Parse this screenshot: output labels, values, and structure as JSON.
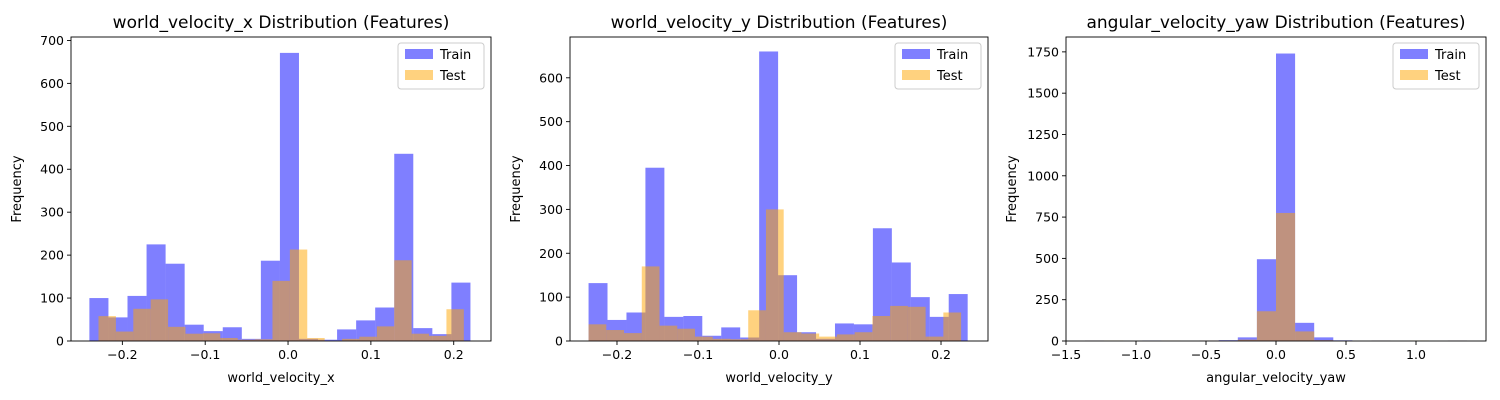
{
  "colors": {
    "train": "#0000ff",
    "test": "#ffa500",
    "train_alpha": 0.5,
    "test_alpha": 0.5
  },
  "chart_data": [
    {
      "type": "histogram",
      "title": "world_velocity_x Distribution (Features)",
      "xlabel": "world_velocity_x",
      "ylabel": "Frequency",
      "xlim": [
        -0.262,
        0.245
      ],
      "ylim": [
        0,
        708
      ],
      "xticks": [
        -0.2,
        -0.1,
        0.0,
        0.1,
        0.2
      ],
      "xtick_labels": [
        "−0.2",
        "−0.1",
        "0.0",
        "0.1",
        "0.2"
      ],
      "yticks": [
        0,
        100,
        200,
        300,
        400,
        500,
        600,
        700
      ],
      "ytick_labels": [
        "0",
        "100",
        "200",
        "300",
        "400",
        "500",
        "600",
        "700"
      ],
      "legend": {
        "placement": "top-right",
        "entries": [
          "Train",
          "Test"
        ]
      },
      "series": [
        {
          "name": "Train",
          "color": "#0000ff",
          "edges": [
            -0.2398,
            -0.2168,
            -0.1938,
            -0.1708,
            -0.1478,
            -0.1248,
            -0.1018,
            -0.0788,
            -0.0558,
            -0.0328,
            -0.0098,
            0.0132,
            0.0362,
            0.0592,
            0.0822,
            0.1052,
            0.1282,
            0.1512,
            0.1742,
            0.1972,
            0.2202
          ],
          "values": [
            100,
            55,
            105,
            225,
            180,
            38,
            23,
            32,
            5,
            187,
            671,
            5,
            3,
            27,
            48,
            78,
            436,
            30,
            16,
            136
          ]
        },
        {
          "name": "Test",
          "color": "#ffa500",
          "edges": [
            -0.2288,
            -0.2078,
            -0.1868,
            -0.1658,
            -0.1448,
            -0.1238,
            -0.1028,
            -0.0818,
            -0.0608,
            -0.0398,
            -0.0188,
            0.0022,
            0.0232,
            0.0442,
            0.0652,
            0.0862,
            0.1072,
            0.1282,
            0.1492,
            0.1702,
            0.1912,
            0.2122
          ],
          "values": [
            58,
            22,
            75,
            97,
            33,
            17,
            18,
            7,
            3,
            4,
            140,
            213,
            7,
            0,
            5,
            10,
            34,
            188,
            17,
            12,
            74
          ]
        }
      ]
    },
    {
      "type": "histogram",
      "title": "world_velocity_y Distribution (Features)",
      "xlabel": "world_velocity_y",
      "ylabel": "Frequency",
      "xlim": [
        -0.258,
        0.258
      ],
      "ylim": [
        0,
        693
      ],
      "xticks": [
        -0.2,
        -0.1,
        0.0,
        0.1,
        0.2
      ],
      "xtick_labels": [
        "−0.2",
        "−0.1",
        "0.0",
        "0.1",
        "0.2"
      ],
      "yticks": [
        0,
        100,
        200,
        300,
        400,
        500,
        600
      ],
      "ytick_labels": [
        "0",
        "100",
        "200",
        "300",
        "400",
        "500",
        "600"
      ],
      "legend": {
        "placement": "top-right",
        "entries": [
          "Train",
          "Test"
        ]
      },
      "series": [
        {
          "name": "Train",
          "color": "#0000ff",
          "edges": [
            -0.2351,
            -0.2117,
            -0.1883,
            -0.1649,
            -0.1415,
            -0.1181,
            -0.0947,
            -0.0713,
            -0.0479,
            -0.0245,
            -0.0011,
            0.0223,
            0.0457,
            0.0691,
            0.0925,
            0.1159,
            0.1393,
            0.1627,
            0.1861,
            0.2095,
            0.2329
          ],
          "values": [
            132,
            48,
            65,
            395,
            55,
            57,
            12,
            31,
            8,
            660,
            150,
            20,
            5,
            40,
            38,
            257,
            179,
            100,
            55,
            107
          ]
        },
        {
          "name": "Test",
          "color": "#ffa500",
          "edges": [
            -0.2351,
            -0.2132,
            -0.1913,
            -0.1694,
            -0.1475,
            -0.1256,
            -0.1037,
            -0.0818,
            -0.0599,
            -0.038,
            -0.0161,
            0.0058,
            0.0277,
            0.0496,
            0.0715,
            0.0934,
            0.1153,
            0.1372,
            0.1591,
            0.181,
            0.2029,
            0.2248
          ],
          "values": [
            38,
            25,
            18,
            170,
            35,
            28,
            10,
            5,
            4,
            70,
            300,
            20,
            17,
            10,
            15,
            20,
            57,
            80,
            78,
            10,
            65
          ]
        }
      ]
    },
    {
      "type": "histogram",
      "title": "angular_velocity_yaw Distribution (Features)",
      "xlabel": "angular_velocity_yaw",
      "ylabel": "Frequency",
      "xlim": [
        -1.5,
        1.5
      ],
      "ylim": [
        0,
        1840
      ],
      "xticks": [
        -1.5,
        -1.0,
        -0.5,
        0.0,
        0.5,
        1.0
      ],
      "xtick_labels": [
        "−1.5",
        "−1.0",
        "−0.5",
        "0.0",
        "0.5",
        "1.0"
      ],
      "yticks": [
        0,
        250,
        500,
        750,
        1000,
        1250,
        1500,
        1750
      ],
      "ytick_labels": [
        "0",
        "250",
        "500",
        "750",
        "1000",
        "1250",
        "1500",
        "1750"
      ],
      "legend": {
        "placement": "top-right",
        "entries": [
          "Train",
          "Test"
        ]
      },
      "series": [
        {
          "name": "Train",
          "color": "#0000ff",
          "edges": [
            -1.364,
            -1.2276,
            -1.0912,
            -0.9548,
            -0.8184,
            -0.682,
            -0.5456,
            -0.4092,
            -0.2728,
            -0.1364,
            0.0,
            0.1364,
            0.2728,
            0.4092,
            0.5456,
            0.682,
            0.8184,
            0.9548,
            1.0912,
            1.2276,
            1.364
          ],
          "values": [
            3,
            0,
            0,
            3,
            0,
            0,
            3,
            5,
            22,
            495,
            1740,
            110,
            22,
            4,
            0,
            3,
            0,
            0,
            0,
            3
          ]
        },
        {
          "name": "Test",
          "color": "#ffa500",
          "edges": [
            -1.364,
            -1.2276,
            -1.0912,
            -0.9548,
            -0.8184,
            -0.682,
            -0.5456,
            -0.4092,
            -0.2728,
            -0.1364,
            0.0,
            0.1364,
            0.2728,
            0.4092,
            0.5456,
            0.682,
            0.8184,
            0.9548,
            1.0912,
            1.2276,
            1.364
          ],
          "values": [
            2,
            3,
            0,
            0,
            2,
            0,
            3,
            2,
            8,
            180,
            775,
            58,
            5,
            0,
            0,
            2,
            0,
            3,
            0,
            2
          ]
        }
      ]
    }
  ]
}
